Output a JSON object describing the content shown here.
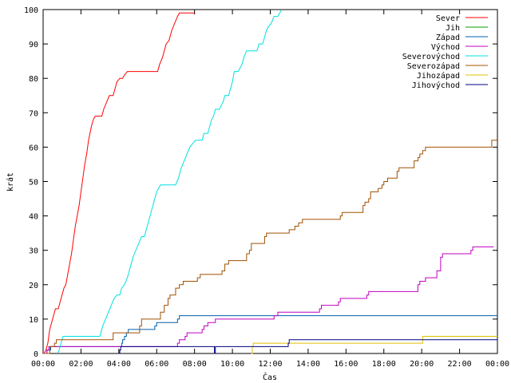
{
  "chart_data": {
    "type": "line",
    "title": "",
    "xlabel": "Čas",
    "ylabel": "krát",
    "xlim": [
      0,
      24
    ],
    "ylim": [
      0,
      100
    ],
    "x_ticks": [
      "00:00",
      "02:00",
      "04:00",
      "06:00",
      "08:00",
      "10:00",
      "12:00",
      "14:00",
      "16:00",
      "18:00",
      "20:00",
      "22:00",
      "00:00"
    ],
    "y_ticks": [
      0,
      10,
      20,
      30,
      40,
      50,
      60,
      70,
      80,
      90,
      100
    ],
    "grid": false,
    "legend_position": "top-right",
    "series": [
      {
        "name": "Sever",
        "color": "#ff0000",
        "step": false,
        "points": [
          [
            0.05,
            0
          ],
          [
            0.15,
            1
          ],
          [
            0.25,
            3
          ],
          [
            0.35,
            7
          ],
          [
            0.45,
            9
          ],
          [
            0.55,
            11
          ],
          [
            0.65,
            13
          ],
          [
            0.8,
            13
          ],
          [
            0.9,
            15
          ],
          [
            1.0,
            17
          ],
          [
            1.1,
            19
          ],
          [
            1.2,
            20
          ],
          [
            1.3,
            23
          ],
          [
            1.4,
            26
          ],
          [
            1.5,
            29
          ],
          [
            1.6,
            33
          ],
          [
            1.7,
            37
          ],
          [
            1.8,
            40
          ],
          [
            1.9,
            43
          ],
          [
            2.0,
            47
          ],
          [
            2.1,
            51
          ],
          [
            2.2,
            55
          ],
          [
            2.3,
            58
          ],
          [
            2.4,
            62
          ],
          [
            2.55,
            66
          ],
          [
            2.65,
            68
          ],
          [
            2.75,
            69
          ],
          [
            3.1,
            69
          ],
          [
            3.2,
            71
          ],
          [
            3.35,
            73
          ],
          [
            3.5,
            75
          ],
          [
            3.7,
            75
          ],
          [
            3.8,
            77
          ],
          [
            3.9,
            79
          ],
          [
            4.05,
            80
          ],
          [
            4.2,
            80
          ],
          [
            4.3,
            81
          ],
          [
            4.45,
            82
          ],
          [
            6.05,
            82
          ],
          [
            6.15,
            84
          ],
          [
            6.3,
            86
          ],
          [
            6.4,
            88
          ],
          [
            6.5,
            90
          ],
          [
            6.65,
            91
          ],
          [
            6.8,
            94
          ],
          [
            6.95,
            96
          ],
          [
            7.1,
            98
          ],
          [
            7.2,
            99
          ],
          [
            7.35,
            99
          ],
          [
            8.0,
            99
          ]
        ]
      },
      {
        "name": "Jih",
        "color": "#00a000",
        "step": true,
        "points": [
          [
            0.0,
            0
          ]
        ]
      },
      {
        "name": "Západ",
        "color": "#0060ad",
        "step": true,
        "points": [
          [
            0.0,
            0
          ],
          [
            0.2,
            1
          ],
          [
            0.3,
            1
          ],
          [
            0.4,
            2
          ],
          [
            4.1,
            2
          ],
          [
            4.15,
            3
          ],
          [
            4.2,
            4
          ],
          [
            4.3,
            5
          ],
          [
            4.4,
            6
          ],
          [
            4.5,
            7
          ],
          [
            4.6,
            7
          ],
          [
            5.8,
            7
          ],
          [
            5.9,
            8
          ],
          [
            6.0,
            9
          ],
          [
            7.0,
            9
          ],
          [
            7.1,
            10
          ],
          [
            7.2,
            11
          ],
          [
            24.0,
            11
          ]
        ]
      },
      {
        "name": "Východ",
        "color": "#c000c0",
        "step": true,
        "points": [
          [
            0.0,
            0
          ],
          [
            0.2,
            1
          ],
          [
            0.3,
            2
          ],
          [
            7.0,
            2
          ],
          [
            7.1,
            3
          ],
          [
            7.2,
            4
          ],
          [
            7.4,
            4
          ],
          [
            7.5,
            5
          ],
          [
            7.6,
            6
          ],
          [
            8.3,
            6
          ],
          [
            8.4,
            7
          ],
          [
            8.5,
            8
          ],
          [
            8.6,
            8
          ],
          [
            8.7,
            9
          ],
          [
            9.0,
            9
          ],
          [
            9.1,
            10
          ],
          [
            12.1,
            10
          ],
          [
            12.2,
            11
          ],
          [
            12.4,
            12
          ],
          [
            14.5,
            12
          ],
          [
            14.6,
            13
          ],
          [
            14.7,
            14
          ],
          [
            15.5,
            14
          ],
          [
            15.6,
            15
          ],
          [
            15.7,
            16
          ],
          [
            17.0,
            16
          ],
          [
            17.1,
            17
          ],
          [
            17.2,
            18
          ],
          [
            19.7,
            18
          ],
          [
            19.8,
            20
          ],
          [
            19.9,
            21
          ],
          [
            20.1,
            21
          ],
          [
            20.2,
            22
          ],
          [
            20.7,
            22
          ],
          [
            20.8,
            24
          ],
          [
            21.0,
            28
          ],
          [
            21.1,
            29
          ],
          [
            22.5,
            29
          ],
          [
            22.6,
            30
          ],
          [
            22.7,
            31
          ],
          [
            23.8,
            31
          ]
        ]
      },
      {
        "name": "Severovýchod",
        "color": "#00e0e0",
        "step": false,
        "points": [
          [
            0.75,
            0
          ],
          [
            0.85,
            1
          ],
          [
            0.95,
            3
          ],
          [
            1.05,
            5
          ],
          [
            3.0,
            5
          ],
          [
            3.05,
            6
          ],
          [
            3.15,
            8
          ],
          [
            3.3,
            10
          ],
          [
            3.45,
            12
          ],
          [
            3.6,
            14
          ],
          [
            3.75,
            16
          ],
          [
            3.9,
            17
          ],
          [
            4.05,
            17
          ],
          [
            4.15,
            19
          ],
          [
            4.3,
            20
          ],
          [
            4.45,
            22
          ],
          [
            4.6,
            25
          ],
          [
            4.75,
            28
          ],
          [
            4.9,
            30
          ],
          [
            5.05,
            32
          ],
          [
            5.2,
            34
          ],
          [
            5.35,
            34
          ],
          [
            5.5,
            37
          ],
          [
            5.65,
            40
          ],
          [
            5.8,
            43
          ],
          [
            5.9,
            45
          ],
          [
            6.0,
            47
          ],
          [
            6.1,
            48
          ],
          [
            6.2,
            49
          ],
          [
            7.0,
            49
          ],
          [
            7.15,
            51
          ],
          [
            7.3,
            54
          ],
          [
            7.45,
            56
          ],
          [
            7.6,
            58
          ],
          [
            7.75,
            60
          ],
          [
            7.9,
            61
          ],
          [
            8.05,
            62
          ],
          [
            8.4,
            62
          ],
          [
            8.5,
            64
          ],
          [
            8.7,
            64
          ],
          [
            8.8,
            66
          ],
          [
            8.9,
            68
          ],
          [
            9.0,
            69
          ],
          [
            9.1,
            71
          ],
          [
            9.3,
            71
          ],
          [
            9.5,
            73
          ],
          [
            9.6,
            75
          ],
          [
            9.8,
            75
          ],
          [
            9.9,
            77
          ],
          [
            10.0,
            79
          ],
          [
            10.1,
            82
          ],
          [
            10.3,
            82
          ],
          [
            10.5,
            84
          ],
          [
            10.6,
            86
          ],
          [
            10.75,
            88
          ],
          [
            11.3,
            88
          ],
          [
            11.4,
            90
          ],
          [
            11.6,
            90
          ],
          [
            11.7,
            92
          ],
          [
            11.8,
            94
          ],
          [
            11.9,
            95
          ],
          [
            12.05,
            96
          ],
          [
            12.2,
            98
          ],
          [
            12.4,
            98
          ],
          [
            12.6,
            100
          ]
        ]
      },
      {
        "name": "Severozápad",
        "color": "#a05000",
        "step": true,
        "points": [
          [
            0.0,
            0
          ],
          [
            0.35,
            2
          ],
          [
            0.6,
            3
          ],
          [
            0.7,
            4
          ],
          [
            3.55,
            4
          ],
          [
            3.7,
            6
          ],
          [
            5.0,
            6
          ],
          [
            5.1,
            8
          ],
          [
            5.2,
            10
          ],
          [
            6.1,
            10
          ],
          [
            6.2,
            12
          ],
          [
            6.4,
            14
          ],
          [
            6.6,
            16
          ],
          [
            6.7,
            17
          ],
          [
            6.9,
            17
          ],
          [
            7.0,
            19
          ],
          [
            7.2,
            20
          ],
          [
            7.4,
            21
          ],
          [
            8.0,
            21
          ],
          [
            8.15,
            22
          ],
          [
            8.3,
            23
          ],
          [
            9.3,
            23
          ],
          [
            9.45,
            24
          ],
          [
            9.6,
            26
          ],
          [
            9.8,
            27
          ],
          [
            10.6,
            27
          ],
          [
            10.75,
            29
          ],
          [
            10.9,
            30
          ],
          [
            11.0,
            32
          ],
          [
            11.6,
            32
          ],
          [
            11.7,
            34
          ],
          [
            11.8,
            35
          ],
          [
            12.9,
            35
          ],
          [
            13.0,
            36
          ],
          [
            13.3,
            37
          ],
          [
            13.5,
            38
          ],
          [
            13.7,
            39
          ],
          [
            15.5,
            39
          ],
          [
            15.7,
            40
          ],
          [
            15.8,
            41
          ],
          [
            16.8,
            41
          ],
          [
            16.9,
            43
          ],
          [
            17.0,
            44
          ],
          [
            17.2,
            45
          ],
          [
            17.3,
            47
          ],
          [
            17.6,
            47
          ],
          [
            17.7,
            48
          ],
          [
            17.9,
            49
          ],
          [
            18.0,
            50
          ],
          [
            18.2,
            51
          ],
          [
            18.6,
            51
          ],
          [
            18.7,
            53
          ],
          [
            18.8,
            54
          ],
          [
            19.5,
            54
          ],
          [
            19.6,
            56
          ],
          [
            19.8,
            57
          ],
          [
            19.9,
            58
          ],
          [
            20.05,
            59
          ],
          [
            20.2,
            60
          ],
          [
            23.6,
            60
          ],
          [
            23.7,
            62
          ],
          [
            24.0,
            62
          ]
        ]
      },
      {
        "name": "Jihozápad",
        "color": "#e0c000",
        "step": true,
        "points": [
          [
            11.0,
            0
          ],
          [
            11.05,
            2
          ],
          [
            11.1,
            3
          ],
          [
            19.95,
            3
          ],
          [
            20.05,
            5
          ],
          [
            24.0,
            5
          ]
        ]
      },
      {
        "name": "Jihovýchod",
        "color": "#000080",
        "step": true,
        "points": [
          [
            4.0,
            0
          ],
          [
            4.05,
            1
          ],
          [
            4.1,
            2
          ],
          [
            9.0,
            2
          ],
          [
            9.05,
            0
          ],
          [
            9.1,
            2
          ],
          [
            12.9,
            2
          ],
          [
            12.95,
            3
          ],
          [
            13.0,
            4
          ],
          [
            24.0,
            4
          ]
        ]
      }
    ]
  }
}
